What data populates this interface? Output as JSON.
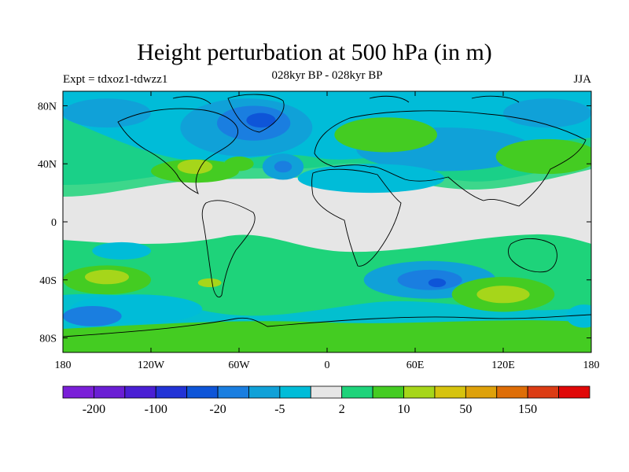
{
  "header": {
    "title": "Height perturbation at 500 hPa (in m)",
    "subtitle": "028kyr BP - 028kyr BP",
    "left": "Expt = tdxoz1-tdwzz1",
    "right": "JJA"
  },
  "axes": {
    "lon_labels": [
      {
        "lon": -180,
        "label": "180"
      },
      {
        "lon": -120,
        "label": "120W"
      },
      {
        "lon": -60,
        "label": "60W"
      },
      {
        "lon": 0,
        "label": "0"
      },
      {
        "lon": 60,
        "label": "60E"
      },
      {
        "lon": 120,
        "label": "120E"
      },
      {
        "lon": 180,
        "label": "180"
      }
    ],
    "lat_labels": [
      {
        "lat": 80,
        "label": "80N"
      },
      {
        "lat": 40,
        "label": "40N"
      },
      {
        "lat": 0,
        "label": "0"
      },
      {
        "lat": -40,
        "label": "40S"
      },
      {
        "lat": -80,
        "label": "80S"
      }
    ]
  },
  "colorbar": {
    "colors": [
      "#7a1fd8",
      "#6a1ed4",
      "#4a1fd4",
      "#2233d6",
      "#0e55d8",
      "#1a7ee0",
      "#10a1d8",
      "#00bcd8",
      "#e6e6e6",
      "#1ed37a",
      "#44cc22",
      "#a6d61a",
      "#d6c30e",
      "#dea10a",
      "#de6d06",
      "#dc3c14",
      "#e00808"
    ],
    "labels": [
      {
        "after_bin": 1,
        "label": "-200"
      },
      {
        "after_bin": 3,
        "label": "-100"
      },
      {
        "after_bin": 5,
        "label": "-20"
      },
      {
        "after_bin": 7,
        "label": "-5"
      },
      {
        "after_bin": 9,
        "label": "2"
      },
      {
        "after_bin": 11,
        "label": "10"
      },
      {
        "after_bin": 13,
        "label": "50"
      },
      {
        "after_bin": 15,
        "label": "150"
      }
    ]
  },
  "fields": [
    {
      "color": "#10a1d8",
      "lon": -150,
      "lat": 75,
      "rlon": 30,
      "rlat": 10
    },
    {
      "color": "#10a1d8",
      "lon": -55,
      "lat": 65,
      "rlon": 45,
      "rlat": 20
    },
    {
      "color": "#1a7ee0",
      "lon": -50,
      "lat": 68,
      "rlon": 25,
      "rlat": 12
    },
    {
      "color": "#0e55d8",
      "lon": -45,
      "lat": 70,
      "rlon": 10,
      "rlat": 5
    },
    {
      "color": "#10a1d8",
      "lon": -30,
      "lat": 38,
      "rlon": 14,
      "rlat": 9
    },
    {
      "color": "#1a7ee0",
      "lon": -30,
      "lat": 38,
      "rlon": 6,
      "rlat": 4
    },
    {
      "color": "#10a1d8",
      "lon": 150,
      "lat": 75,
      "rlon": 30,
      "rlat": 10
    },
    {
      "color": "#10a1d8",
      "lon": 80,
      "lat": 50,
      "rlon": 60,
      "rlat": 15
    },
    {
      "color": "#00bcd8",
      "lon": 30,
      "lat": 30,
      "rlon": 50,
      "rlat": 10
    },
    {
      "color": "#00bcd8",
      "lon": -140,
      "lat": -20,
      "rlon": 20,
      "rlat": 6
    },
    {
      "color": "#00bcd8",
      "lon": -130,
      "lat": -60,
      "rlon": 45,
      "rlat": 10
    },
    {
      "color": "#1a7ee0",
      "lon": -160,
      "lat": -65,
      "rlon": 20,
      "rlat": 7
    },
    {
      "color": "#10a1d8",
      "lon": 70,
      "lat": -40,
      "rlon": 45,
      "rlat": 13
    },
    {
      "color": "#1a7ee0",
      "lon": 70,
      "lat": -40,
      "rlon": 22,
      "rlat": 7
    },
    {
      "color": "#0e55d8",
      "lon": 75,
      "lat": -42,
      "rlon": 6,
      "rlat": 3
    },
    {
      "color": "#00bcd8",
      "lon": 175,
      "lat": -65,
      "rlon": 12,
      "rlat": 8
    },
    {
      "color": "#44cc22",
      "lon": 40,
      "lat": 60,
      "rlon": 35,
      "rlat": 12
    },
    {
      "color": "#44cc22",
      "lon": -90,
      "lat": 35,
      "rlon": 30,
      "rlat": 8
    },
    {
      "color": "#a6d61a",
      "lon": -90,
      "lat": 38,
      "rlon": 12,
      "rlat": 5
    },
    {
      "color": "#44cc22",
      "lon": -60,
      "lat": 40,
      "rlon": 10,
      "rlat": 5
    },
    {
      "color": "#44cc22",
      "lon": 150,
      "lat": 45,
      "rlon": 35,
      "rlat": 12
    },
    {
      "color": "#44cc22",
      "lon": -150,
      "lat": -40,
      "rlon": 30,
      "rlat": 10
    },
    {
      "color": "#a6d61a",
      "lon": -150,
      "lat": -38,
      "rlon": 15,
      "rlat": 5
    },
    {
      "color": "#44cc22",
      "lon": 120,
      "lat": -50,
      "rlon": 35,
      "rlat": 12
    },
    {
      "color": "#a6d61a",
      "lon": 120,
      "lat": -50,
      "rlon": 18,
      "rlat": 6
    },
    {
      "color": "#44cc22",
      "lon": -75,
      "lat": -78,
      "rlon": 80,
      "rlat": 5
    },
    {
      "color": "#a6d61a",
      "lon": -80,
      "lat": -42,
      "rlon": 8,
      "rlat": 3
    }
  ]
}
